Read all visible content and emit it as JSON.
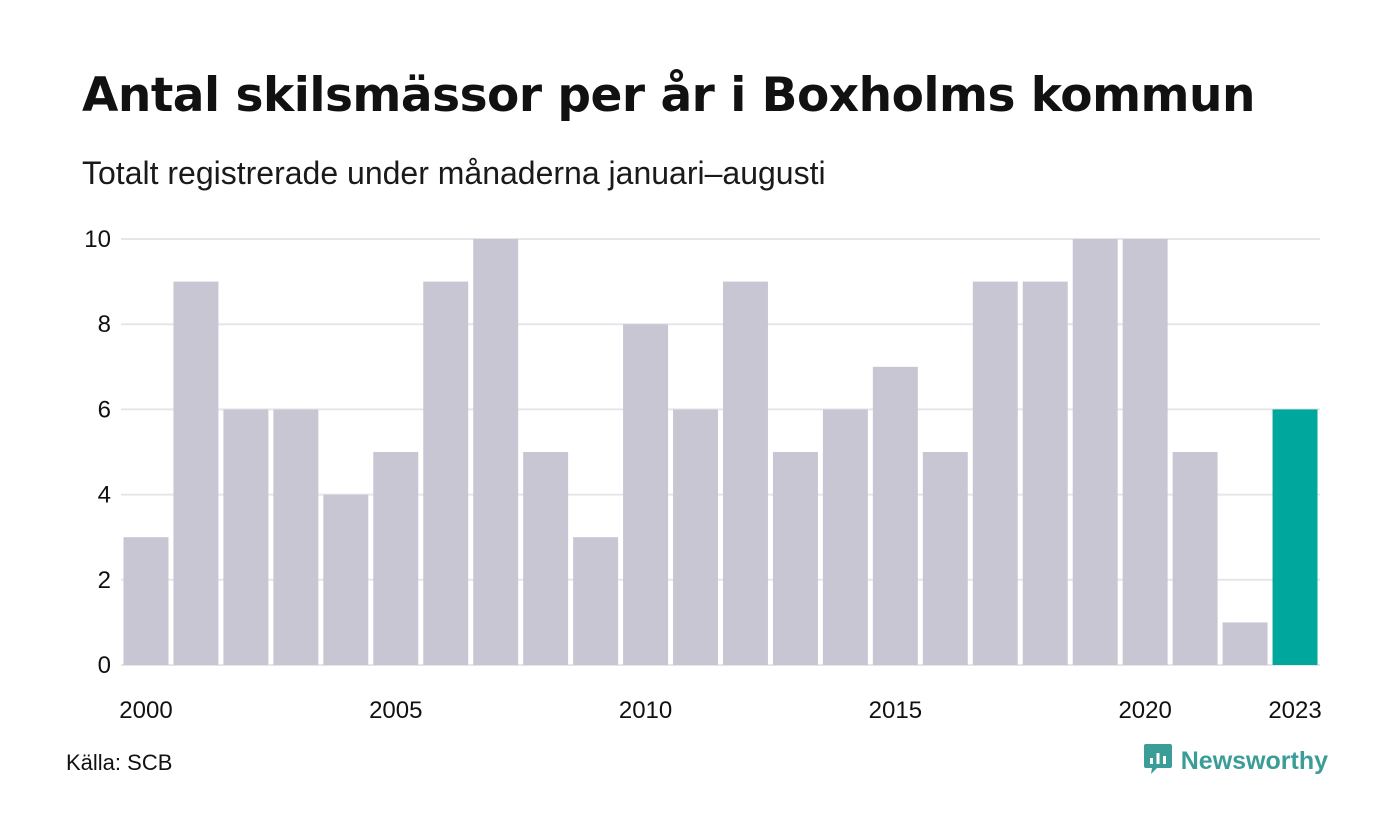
{
  "header": {
    "title": "Antal skilsmässor per år i Boxholms kommun",
    "subtitle": "Totalt registrerade under månaderna januari–augusti"
  },
  "footer": {
    "source": "Källa: SCB",
    "brand": "Newsworthy",
    "brand_icon": "bar-chart-speech-bubble-icon"
  },
  "colors": {
    "bar_default": "#c8c6d2",
    "bar_highlight": "#00a79d",
    "grid": "#e6e6ea",
    "brand": "#3b9d97"
  },
  "chart_data": {
    "type": "bar",
    "categories": [
      "2000",
      "2001",
      "2002",
      "2003",
      "2004",
      "2005",
      "2006",
      "2007",
      "2008",
      "2009",
      "2010",
      "2011",
      "2012",
      "2013",
      "2014",
      "2015",
      "2016",
      "2017",
      "2018",
      "2019",
      "2020",
      "2021",
      "2022",
      "2023"
    ],
    "values": [
      3,
      9,
      6,
      6,
      4,
      5,
      9,
      10,
      5,
      3,
      8,
      6,
      9,
      5,
      6,
      7,
      5,
      9,
      9,
      10,
      10,
      5,
      1,
      6
    ],
    "highlight": "2023",
    "x_tick_labels": [
      "2000",
      "2005",
      "2010",
      "2015",
      "2020",
      "2023"
    ],
    "y_ticks": [
      0,
      2,
      4,
      6,
      8,
      10
    ],
    "ylim": [
      0,
      10
    ],
    "title": "Antal skilsmässor per år i Boxholms kommun",
    "subtitle": "Totalt registrerade under månaderna januari–augusti",
    "xlabel": "",
    "ylabel": "",
    "grid": true,
    "legend": "none"
  }
}
